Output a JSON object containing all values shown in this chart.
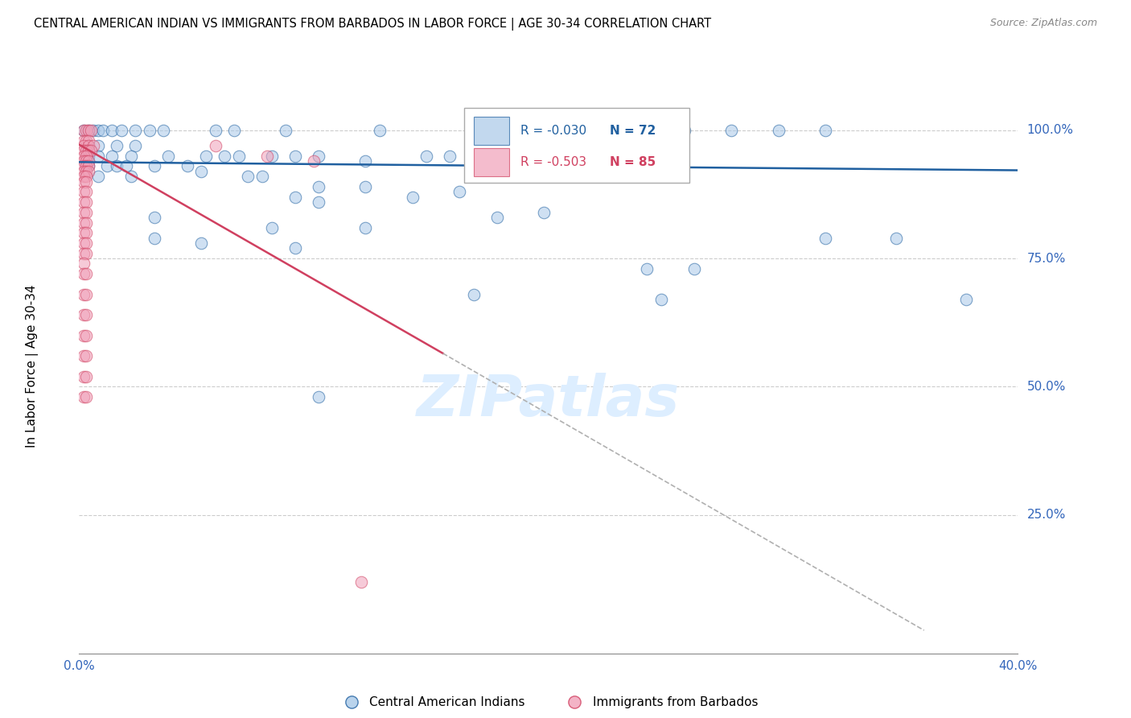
{
  "title": "CENTRAL AMERICAN INDIAN VS IMMIGRANTS FROM BARBADOS IN LABOR FORCE | AGE 30-34 CORRELATION CHART",
  "source": "Source: ZipAtlas.com",
  "ylabel": "In Labor Force | Age 30-34",
  "legend1_label": "Central American Indians",
  "legend2_label": "Immigrants from Barbados",
  "R1": -0.03,
  "N1": 72,
  "R2": -0.503,
  "N2": 85,
  "color_blue": "#a8c8e8",
  "color_pink": "#f0a0b8",
  "line_blue": "#2060a0",
  "line_pink": "#d04060",
  "line_gray_dashed": "#b0b0b0",
  "watermark_text": "ZIPatlas",
  "watermark_color": "#ddeeff",
  "blue_scatter": [
    [
      0.002,
      1.0
    ],
    [
      0.004,
      1.0
    ],
    [
      0.006,
      1.0
    ],
    [
      0.008,
      1.0
    ],
    [
      0.01,
      1.0
    ],
    [
      0.014,
      1.0
    ],
    [
      0.018,
      1.0
    ],
    [
      0.024,
      1.0
    ],
    [
      0.03,
      1.0
    ],
    [
      0.036,
      1.0
    ],
    [
      0.058,
      1.0
    ],
    [
      0.066,
      1.0
    ],
    [
      0.088,
      1.0
    ],
    [
      0.128,
      1.0
    ],
    [
      0.198,
      1.0
    ],
    [
      0.218,
      1.0
    ],
    [
      0.238,
      1.0
    ],
    [
      0.258,
      1.0
    ],
    [
      0.278,
      1.0
    ],
    [
      0.298,
      1.0
    ],
    [
      0.318,
      1.0
    ],
    [
      0.208,
      0.97
    ],
    [
      0.004,
      0.97
    ],
    [
      0.008,
      0.97
    ],
    [
      0.016,
      0.97
    ],
    [
      0.024,
      0.97
    ],
    [
      0.004,
      0.95
    ],
    [
      0.008,
      0.95
    ],
    [
      0.014,
      0.95
    ],
    [
      0.022,
      0.95
    ],
    [
      0.038,
      0.95
    ],
    [
      0.054,
      0.95
    ],
    [
      0.062,
      0.95
    ],
    [
      0.068,
      0.95
    ],
    [
      0.082,
      0.95
    ],
    [
      0.092,
      0.95
    ],
    [
      0.102,
      0.95
    ],
    [
      0.148,
      0.95
    ],
    [
      0.158,
      0.95
    ],
    [
      0.122,
      0.94
    ],
    [
      0.198,
      0.94
    ],
    [
      0.004,
      0.93
    ],
    [
      0.012,
      0.93
    ],
    [
      0.016,
      0.93
    ],
    [
      0.02,
      0.93
    ],
    [
      0.032,
      0.93
    ],
    [
      0.046,
      0.93
    ],
    [
      0.052,
      0.92
    ],
    [
      0.008,
      0.91
    ],
    [
      0.022,
      0.91
    ],
    [
      0.072,
      0.91
    ],
    [
      0.078,
      0.91
    ],
    [
      0.102,
      0.89
    ],
    [
      0.122,
      0.89
    ],
    [
      0.162,
      0.88
    ],
    [
      0.092,
      0.87
    ],
    [
      0.142,
      0.87
    ],
    [
      0.102,
      0.86
    ],
    [
      0.198,
      0.84
    ],
    [
      0.032,
      0.83
    ],
    [
      0.178,
      0.83
    ],
    [
      0.082,
      0.81
    ],
    [
      0.122,
      0.81
    ],
    [
      0.032,
      0.79
    ],
    [
      0.052,
      0.78
    ],
    [
      0.092,
      0.77
    ],
    [
      0.242,
      0.73
    ],
    [
      0.262,
      0.73
    ],
    [
      0.318,
      0.79
    ],
    [
      0.348,
      0.79
    ],
    [
      0.168,
      0.68
    ],
    [
      0.248,
      0.67
    ],
    [
      0.102,
      0.48
    ],
    [
      0.378,
      0.67
    ]
  ],
  "pink_scatter": [
    [
      0.002,
      1.0
    ],
    [
      0.003,
      1.0
    ],
    [
      0.004,
      1.0
    ],
    [
      0.005,
      1.0
    ],
    [
      0.002,
      0.98
    ],
    [
      0.003,
      0.98
    ],
    [
      0.004,
      0.98
    ],
    [
      0.002,
      0.97
    ],
    [
      0.004,
      0.97
    ],
    [
      0.006,
      0.97
    ],
    [
      0.058,
      0.97
    ],
    [
      0.002,
      0.96
    ],
    [
      0.003,
      0.96
    ],
    [
      0.004,
      0.96
    ],
    [
      0.005,
      0.96
    ],
    [
      0.002,
      0.95
    ],
    [
      0.003,
      0.95
    ],
    [
      0.08,
      0.95
    ],
    [
      0.002,
      0.94
    ],
    [
      0.003,
      0.94
    ],
    [
      0.004,
      0.94
    ],
    [
      0.1,
      0.94
    ],
    [
      0.002,
      0.93
    ],
    [
      0.003,
      0.93
    ],
    [
      0.004,
      0.93
    ],
    [
      0.002,
      0.92
    ],
    [
      0.003,
      0.92
    ],
    [
      0.004,
      0.92
    ],
    [
      0.002,
      0.91
    ],
    [
      0.003,
      0.91
    ],
    [
      0.002,
      0.9
    ],
    [
      0.003,
      0.9
    ],
    [
      0.002,
      0.88
    ],
    [
      0.003,
      0.88
    ],
    [
      0.002,
      0.86
    ],
    [
      0.003,
      0.86
    ],
    [
      0.002,
      0.84
    ],
    [
      0.003,
      0.84
    ],
    [
      0.002,
      0.82
    ],
    [
      0.003,
      0.82
    ],
    [
      0.002,
      0.8
    ],
    [
      0.003,
      0.8
    ],
    [
      0.002,
      0.78
    ],
    [
      0.003,
      0.78
    ],
    [
      0.002,
      0.76
    ],
    [
      0.003,
      0.76
    ],
    [
      0.002,
      0.74
    ],
    [
      0.002,
      0.72
    ],
    [
      0.003,
      0.72
    ],
    [
      0.002,
      0.68
    ],
    [
      0.003,
      0.68
    ],
    [
      0.002,
      0.64
    ],
    [
      0.003,
      0.64
    ],
    [
      0.002,
      0.6
    ],
    [
      0.003,
      0.6
    ],
    [
      0.002,
      0.56
    ],
    [
      0.003,
      0.56
    ],
    [
      0.002,
      0.52
    ],
    [
      0.003,
      0.52
    ],
    [
      0.002,
      0.48
    ],
    [
      0.003,
      0.48
    ],
    [
      0.12,
      0.12
    ]
  ],
  "xlim": [
    0.0,
    0.4
  ],
  "ylim": [
    -0.02,
    1.1
  ],
  "xplot_min": 0.0,
  "xplot_max": 0.4,
  "yplot_min": 0.0,
  "yplot_max": 1.0,
  "blue_trendline_x": [
    0.0,
    0.4
  ],
  "blue_trendline_y": [
    0.938,
    0.922
  ],
  "pink_trendline_x": [
    0.0,
    0.155
  ],
  "pink_trendline_y": [
    0.972,
    0.565
  ],
  "gray_trendline_x": [
    0.155,
    0.36
  ],
  "gray_trendline_y": [
    0.565,
    0.025
  ],
  "xtick_positions": [
    0.0,
    0.4
  ],
  "xtick_labels": [
    "0.0%",
    "40.0%"
  ],
  "ytick_values": [
    1.0,
    0.75,
    0.5,
    0.25
  ],
  "ytick_labels": [
    "100.0%",
    "75.0%",
    "50.0%",
    "25.0%"
  ]
}
